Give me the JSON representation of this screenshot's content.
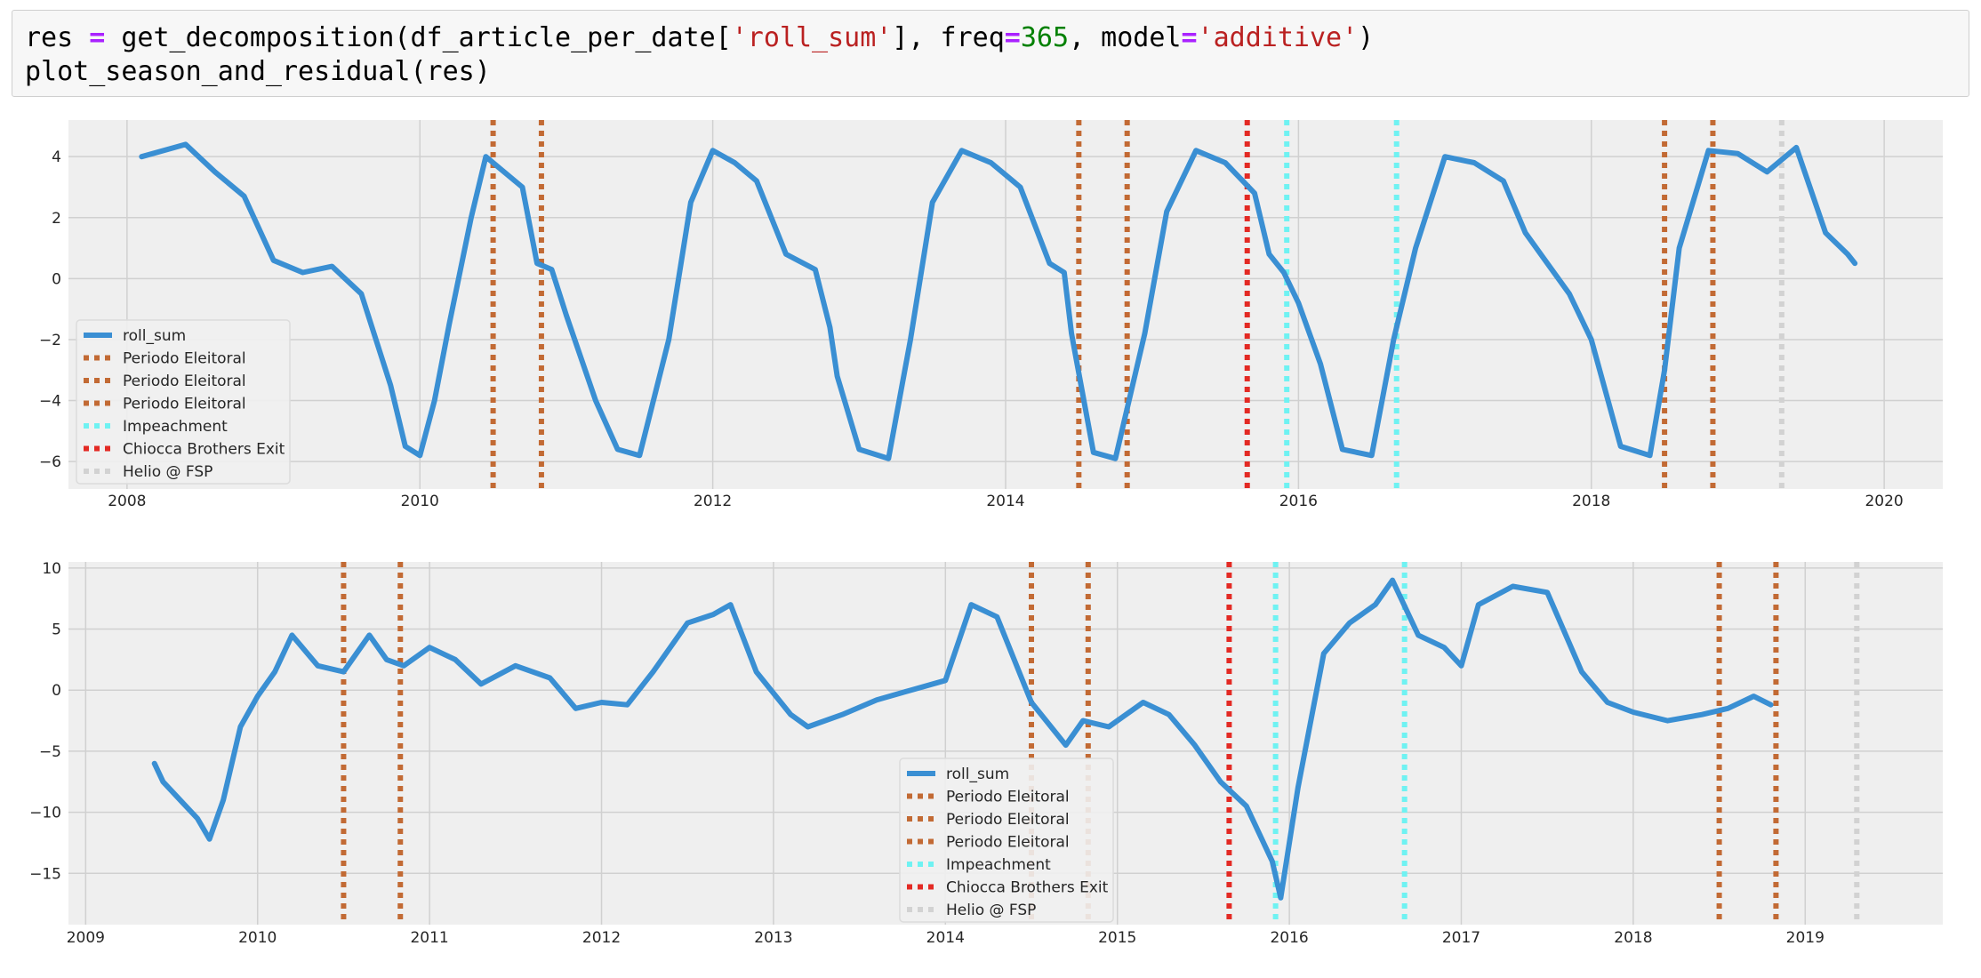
{
  "code_cell": {
    "line1": [
      {
        "t": "res ",
        "c": "plain"
      },
      {
        "t": "=",
        "c": "op"
      },
      {
        "t": " get_decomposition(df_article_per_date[",
        "c": "plain"
      },
      {
        "t": "'roll_sum'",
        "c": "str"
      },
      {
        "t": "], freq",
        "c": "plain"
      },
      {
        "t": "=",
        "c": "op"
      },
      {
        "t": "365",
        "c": "num"
      },
      {
        "t": ", model",
        "c": "plain"
      },
      {
        "t": "=",
        "c": "op"
      },
      {
        "t": "'additive'",
        "c": "str"
      },
      {
        "t": ")",
        "c": "plain"
      }
    ],
    "line2": "plot_season_and_residual(res)"
  },
  "colors": {
    "line": "#3a8fd3",
    "periodo": "#c26a34",
    "impeachment": "#6ff2f2",
    "chiocca": "#e32a24",
    "helio": "#d2d2d2",
    "panel_bg": "#efefef",
    "grid": "#d0d0d0"
  },
  "legend_entries": [
    {
      "label": "roll_sum",
      "style": "line",
      "color": "#3a8fd3"
    },
    {
      "label": "Periodo Eleitoral",
      "style": "dots",
      "color": "#c26a34"
    },
    {
      "label": "Periodo Eleitoral",
      "style": "dots",
      "color": "#c26a34"
    },
    {
      "label": "Periodo Eleitoral",
      "style": "dots",
      "color": "#c26a34"
    },
    {
      "label": "Impeachment",
      "style": "dots",
      "color": "#6ff2f2"
    },
    {
      "label": "Chiocca Brothers Exit",
      "style": "dots",
      "color": "#e32a24"
    },
    {
      "label": "Helio @ FSP",
      "style": "dots",
      "color": "#d2d2d2"
    }
  ],
  "chart_data": [
    {
      "type": "line",
      "title": "",
      "xlabel": "",
      "ylabel": "",
      "xlim": [
        2007.6,
        2020.4
      ],
      "ylim": [
        -6.9,
        5.2
      ],
      "x_ticks": [
        2008,
        2010,
        2012,
        2014,
        2016,
        2018,
        2020
      ],
      "y_ticks": [
        -6,
        -4,
        -2,
        0,
        2,
        4
      ],
      "grid": true,
      "legend_position": "lower-left",
      "series": [
        {
          "name": "roll_sum",
          "x": [
            2008.1,
            2008.4,
            2008.6,
            2008.8,
            2009.0,
            2009.2,
            2009.4,
            2009.6,
            2009.7,
            2009.8,
            2009.9,
            2010.0,
            2010.1,
            2010.2,
            2010.35,
            2010.45,
            2010.55,
            2010.7,
            2010.8,
            2010.9,
            2011.0,
            2011.2,
            2011.35,
            2011.5,
            2011.7,
            2011.85,
            2012.0,
            2012.15,
            2012.3,
            2012.5,
            2012.7,
            2012.8,
            2012.85,
            2013.0,
            2013.2,
            2013.35,
            2013.5,
            2013.7,
            2013.9,
            2014.1,
            2014.3,
            2014.4,
            2014.45,
            2014.6,
            2014.75,
            2014.95,
            2015.1,
            2015.3,
            2015.5,
            2015.7,
            2015.8,
            2015.9,
            2016.0,
            2016.15,
            2016.3,
            2016.5,
            2016.65,
            2016.8,
            2017.0,
            2017.2,
            2017.4,
            2017.55,
            2017.7,
            2017.85,
            2018.0,
            2018.2,
            2018.4,
            2018.5,
            2018.6,
            2018.8,
            2019.0,
            2019.2,
            2019.4,
            2019.6,
            2019.75,
            2019.8
          ],
          "y": [
            4.0,
            4.4,
            3.5,
            2.7,
            0.6,
            0.2,
            0.4,
            -0.5,
            -2.0,
            -3.5,
            -5.5,
            -5.8,
            -4.0,
            -1.5,
            2.0,
            4.0,
            3.6,
            3.0,
            0.5,
            0.3,
            -1.2,
            -4.0,
            -5.6,
            -5.8,
            -2.0,
            2.5,
            4.2,
            3.8,
            3.2,
            0.8,
            0.3,
            -1.6,
            -3.2,
            -5.6,
            -5.9,
            -2.0,
            2.5,
            4.2,
            3.8,
            3.0,
            0.5,
            0.2,
            -1.8,
            -5.7,
            -5.9,
            -1.8,
            2.2,
            4.2,
            3.8,
            2.8,
            0.8,
            0.2,
            -0.8,
            -2.8,
            -5.6,
            -5.8,
            -2.0,
            1.0,
            4.0,
            3.8,
            3.2,
            1.5,
            0.5,
            -0.5,
            -2.0,
            -5.5,
            -5.8,
            -3.0,
            1.0,
            4.2,
            4.1,
            3.5,
            4.3,
            1.5,
            0.8,
            0.5
          ]
        }
      ],
      "vlines": [
        {
          "x": 2010.5,
          "label": "Periodo Eleitoral",
          "color": "#c26a34"
        },
        {
          "x": 2010.83,
          "label": "Periodo Eleitoral",
          "color": "#c26a34"
        },
        {
          "x": 2014.5,
          "label": "Periodo Eleitoral",
          "color": "#c26a34"
        },
        {
          "x": 2014.83,
          "label": "Periodo Eleitoral",
          "color": "#c26a34"
        },
        {
          "x": 2015.65,
          "label": "Chiocca Brothers Exit",
          "color": "#e32a24"
        },
        {
          "x": 2015.92,
          "label": "Impeachment",
          "color": "#6ff2f2"
        },
        {
          "x": 2016.67,
          "label": "Impeachment",
          "color": "#6ff2f2"
        },
        {
          "x": 2018.5,
          "label": "Periodo Eleitoral",
          "color": "#c26a34"
        },
        {
          "x": 2018.83,
          "label": "Periodo Eleitoral",
          "color": "#c26a34"
        },
        {
          "x": 2019.3,
          "label": "Helio @ FSP",
          "color": "#d2d2d2"
        }
      ]
    },
    {
      "type": "line",
      "title": "",
      "xlabel": "",
      "ylabel": "",
      "xlim": [
        2008.9,
        2019.8
      ],
      "ylim": [
        -19.2,
        10.5
      ],
      "x_ticks": [
        2009,
        2010,
        2011,
        2012,
        2013,
        2014,
        2015,
        2016,
        2017,
        2018,
        2019
      ],
      "y_ticks": [
        -15,
        -10,
        -5,
        0,
        5,
        10
      ],
      "grid": true,
      "legend_position": "lower-center",
      "series": [
        {
          "name": "roll_sum",
          "x": [
            2009.4,
            2009.45,
            2009.55,
            2009.65,
            2009.72,
            2009.8,
            2009.9,
            2010.0,
            2010.1,
            2010.2,
            2010.35,
            2010.5,
            2010.65,
            2010.75,
            2010.85,
            2011.0,
            2011.15,
            2011.3,
            2011.5,
            2011.7,
            2011.85,
            2012.0,
            2012.15,
            2012.3,
            2012.5,
            2012.65,
            2012.75,
            2012.9,
            2013.1,
            2013.2,
            2013.4,
            2013.6,
            2013.8,
            2014.0,
            2014.15,
            2014.3,
            2014.5,
            2014.7,
            2014.8,
            2014.95,
            2015.15,
            2015.3,
            2015.45,
            2015.6,
            2015.75,
            2015.9,
            2015.95,
            2016.05,
            2016.2,
            2016.35,
            2016.5,
            2016.6,
            2016.75,
            2016.9,
            2017.0,
            2017.1,
            2017.3,
            2017.5,
            2017.7,
            2017.85,
            2018.0,
            2018.2,
            2018.4,
            2018.55,
            2018.7,
            2018.8
          ],
          "y": [
            -6.0,
            -7.5,
            -9.0,
            -10.5,
            -12.2,
            -9.0,
            -3.0,
            -0.5,
            1.5,
            4.5,
            2.0,
            1.5,
            4.5,
            2.5,
            2.0,
            3.5,
            2.5,
            0.5,
            2.0,
            1.0,
            -1.5,
            -1.0,
            -1.2,
            1.5,
            5.5,
            6.2,
            7.0,
            1.5,
            -2.0,
            -3.0,
            -2.0,
            -0.8,
            0.0,
            0.8,
            7.0,
            6.0,
            -1.0,
            -4.5,
            -2.5,
            -3.0,
            -1.0,
            -2.0,
            -4.5,
            -7.5,
            -9.5,
            -14.0,
            -17.0,
            -8.0,
            3.0,
            5.5,
            7.0,
            9.0,
            4.5,
            3.5,
            2.0,
            7.0,
            8.5,
            8.0,
            1.5,
            -1.0,
            -1.8,
            -2.5,
            -2.0,
            -1.5,
            -0.5,
            -1.2
          ]
        }
      ],
      "vlines": [
        {
          "x": 2010.5,
          "label": "Periodo Eleitoral",
          "color": "#c26a34"
        },
        {
          "x": 2010.83,
          "label": "Periodo Eleitoral",
          "color": "#c26a34"
        },
        {
          "x": 2014.5,
          "label": "Periodo Eleitoral",
          "color": "#c26a34"
        },
        {
          "x": 2014.83,
          "label": "Periodo Eleitoral",
          "color": "#c26a34"
        },
        {
          "x": 2015.65,
          "label": "Chiocca Brothers Exit",
          "color": "#e32a24"
        },
        {
          "x": 2015.92,
          "label": "Impeachment",
          "color": "#6ff2f2"
        },
        {
          "x": 2016.67,
          "label": "Impeachment",
          "color": "#6ff2f2"
        },
        {
          "x": 2018.5,
          "label": "Periodo Eleitoral",
          "color": "#c26a34"
        },
        {
          "x": 2018.83,
          "label": "Periodo Eleitoral",
          "color": "#c26a34"
        },
        {
          "x": 2019.3,
          "label": "Helio @ FSP",
          "color": "#d2d2d2"
        }
      ]
    }
  ]
}
